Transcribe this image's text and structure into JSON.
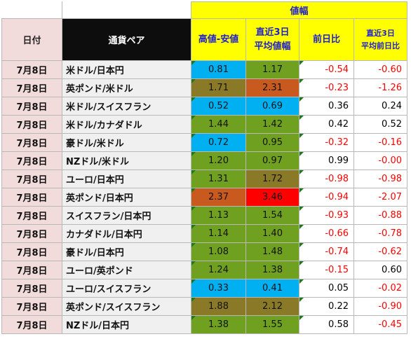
{
  "header": {
    "group_title": "値幅",
    "col_date": "日付",
    "col_pair": "通貨ペア",
    "col_hl_1": "高値-安値",
    "col_avg3_1": "直近3日",
    "col_avg3_2": "平均値幅",
    "col_prev": "前日比",
    "col_prev3_1": "直近3日",
    "col_prev3_2": "平均前日比"
  },
  "colors": {
    "header_yellow": "#ffff00",
    "header_text_blue": "#1f1fd0",
    "date_pink": "#f2dcdb",
    "negative_red": "#ff0000",
    "cell_blue": "#00b0f0",
    "cell_green": "#70a020",
    "cell_olive": "#8a7a28",
    "cell_brown": "#c85a20",
    "cell_red": "#ff0000"
  },
  "rows": [
    {
      "date": "7月8日",
      "pair": "米ドル/日本円",
      "hl": "0.81",
      "avg3": "1.17",
      "prev": "-0.54",
      "prev3": "-0.60",
      "hl_bg": "#00b0f0",
      "avg3_bg": "#70a020"
    },
    {
      "date": "7月8日",
      "pair": "英ポンド/米ドル",
      "hl": "1.71",
      "avg3": "2.31",
      "prev": "-0.23",
      "prev3": "-1.26",
      "hl_bg": "#8a7a28",
      "avg3_bg": "#c85a20"
    },
    {
      "date": "7月8日",
      "pair": "米ドル/スイスフラン",
      "hl": "0.52",
      "avg3": "0.69",
      "prev": "0.36",
      "prev3": "0.24",
      "hl_bg": "#00b0f0",
      "avg3_bg": "#00b0f0"
    },
    {
      "date": "7月8日",
      "pair": "米ドル/カナダドル",
      "hl": "1.44",
      "avg3": "1.42",
      "prev": "0.42",
      "prev3": "0.52",
      "hl_bg": "#70a020",
      "avg3_bg": "#70a020"
    },
    {
      "date": "7月8日",
      "pair": "豪ドル/米ドル",
      "hl": "0.72",
      "avg3": "0.95",
      "prev": "-0.32",
      "prev3": "-0.16",
      "hl_bg": "#00b0f0",
      "avg3_bg": "#70a020"
    },
    {
      "date": "7月8日",
      "pair": "NZドル/米ドル",
      "hl": "1.20",
      "avg3": "0.97",
      "prev": "0.99",
      "prev3": "-0.00",
      "hl_bg": "#70a020",
      "avg3_bg": "#70a020"
    },
    {
      "date": "7月8日",
      "pair": "ユーロ/日本円",
      "hl": "1.31",
      "avg3": "1.72",
      "prev": "-0.98",
      "prev3": "-0.98",
      "hl_bg": "#70a020",
      "avg3_bg": "#8a7a28"
    },
    {
      "date": "7月8日",
      "pair": "英ポンド/日本円",
      "hl": "2.37",
      "avg3": "3.46",
      "prev": "-0.94",
      "prev3": "-2.07",
      "hl_bg": "#c85a20",
      "avg3_bg": "#ff0000"
    },
    {
      "date": "7月8日",
      "pair": "スイスフラン/日本円",
      "hl": "1.13",
      "avg3": "1.54",
      "prev": "-0.93",
      "prev3": "-0.88",
      "hl_bg": "#70a020",
      "avg3_bg": "#70a020"
    },
    {
      "date": "7月8日",
      "pair": "カナダドル/日本円",
      "hl": "1.14",
      "avg3": "1.40",
      "prev": "-0.66",
      "prev3": "-0.78",
      "hl_bg": "#70a020",
      "avg3_bg": "#70a020"
    },
    {
      "date": "7月8日",
      "pair": "豪ドル/日本円",
      "hl": "1.08",
      "avg3": "1.48",
      "prev": "-0.74",
      "prev3": "-0.62",
      "hl_bg": "#70a020",
      "avg3_bg": "#70a020"
    },
    {
      "date": "7月8日",
      "pair": "ユーロ/英ポンド",
      "hl": "1.24",
      "avg3": "1.38",
      "prev": "-0.15",
      "prev3": "0.60",
      "hl_bg": "#70a020",
      "avg3_bg": "#70a020"
    },
    {
      "date": "7月8日",
      "pair": "ユーロ/スイスフラン",
      "hl": "0.33",
      "avg3": "0.41",
      "prev": "0.05",
      "prev3": "-0.02",
      "hl_bg": "#00b0f0",
      "avg3_bg": "#00b0f0"
    },
    {
      "date": "7月8日",
      "pair": "英ポンド/スイスフラン",
      "hl": "1.88",
      "avg3": "2.12",
      "prev": "0.22",
      "prev3": "-0.90",
      "hl_bg": "#8a7a28",
      "avg3_bg": "#8a7a28"
    },
    {
      "date": "7月8日",
      "pair": "NZドル/日本円",
      "hl": "1.38",
      "avg3": "1.55",
      "prev": "0.58",
      "prev3": "-0.45",
      "hl_bg": "#70a020",
      "avg3_bg": "#70a020"
    }
  ]
}
